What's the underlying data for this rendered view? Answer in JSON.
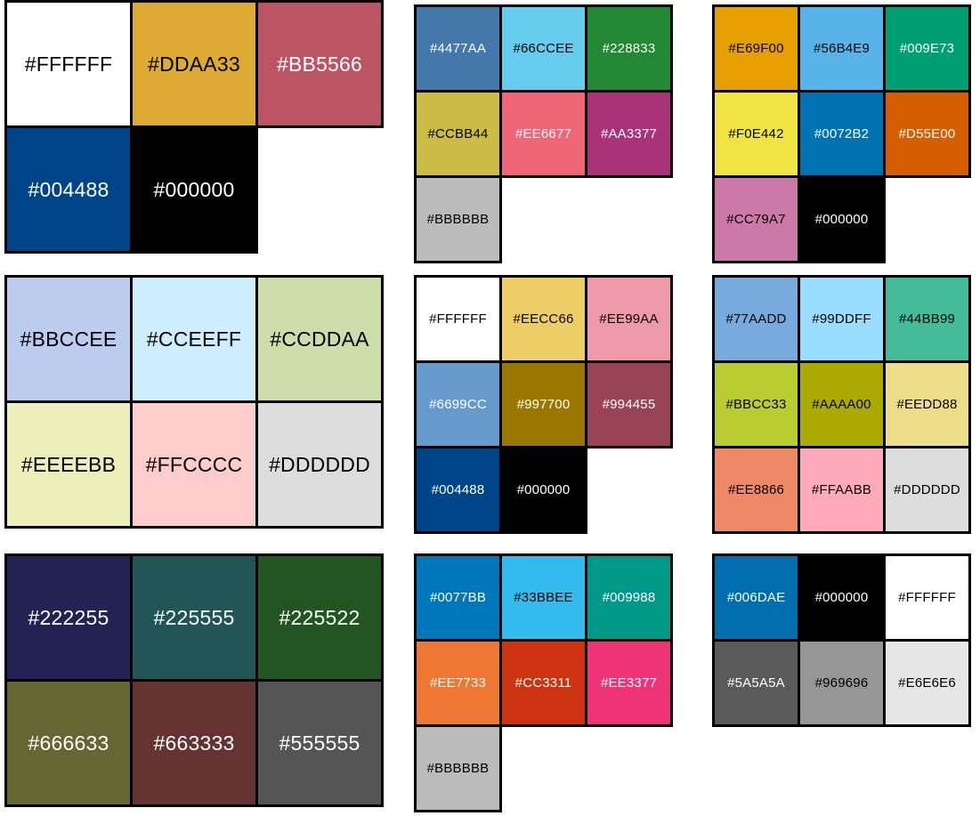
{
  "figure": {
    "background": "#FFFFFF",
    "border_color": "#000000"
  },
  "palettes": [
    {
      "rows": [
        [
          {
            "hex": "#FFFFFF",
            "text": "#000000"
          },
          {
            "hex": "#DDAA33",
            "text": "#000000"
          },
          {
            "hex": "#BB5566",
            "text": "#FFFFFF"
          }
        ],
        [
          {
            "hex": "#004488",
            "text": "#FFFFFF"
          },
          {
            "hex": "#000000",
            "text": "#FFFFFF"
          }
        ]
      ]
    },
    {
      "rows": [
        [
          {
            "hex": "#4477AA",
            "text": "#FFFFFF"
          },
          {
            "hex": "#66CCEE",
            "text": "#000000"
          },
          {
            "hex": "#228833",
            "text": "#FFFFFF"
          }
        ],
        [
          {
            "hex": "#CCBB44",
            "text": "#000000"
          },
          {
            "hex": "#EE6677",
            "text": "#FFFFFF"
          },
          {
            "hex": "#AA3377",
            "text": "#FFFFFF"
          }
        ],
        [
          {
            "hex": "#BBBBBB",
            "text": "#000000"
          }
        ]
      ]
    },
    {
      "rows": [
        [
          {
            "hex": "#E69F00",
            "text": "#000000"
          },
          {
            "hex": "#56B4E9",
            "text": "#000000"
          },
          {
            "hex": "#009E73",
            "text": "#FFFFFF"
          }
        ],
        [
          {
            "hex": "#F0E442",
            "text": "#000000"
          },
          {
            "hex": "#0072B2",
            "text": "#FFFFFF"
          },
          {
            "hex": "#D55E00",
            "text": "#FFFFFF"
          }
        ],
        [
          {
            "hex": "#CC79A7",
            "text": "#000000"
          },
          {
            "hex": "#000000",
            "text": "#FFFFFF"
          }
        ]
      ]
    },
    {
      "rows": [
        [
          {
            "hex": "#BBCCEE",
            "text": "#000000"
          },
          {
            "hex": "#CCEEFF",
            "text": "#000000"
          },
          {
            "hex": "#CCDDAA",
            "text": "#000000"
          }
        ],
        [
          {
            "hex": "#EEEEBB",
            "text": "#000000"
          },
          {
            "hex": "#FFCCCC",
            "text": "#000000"
          },
          {
            "hex": "#DDDDDD",
            "text": "#000000"
          }
        ]
      ]
    },
    {
      "rows": [
        [
          {
            "hex": "#FFFFFF",
            "text": "#000000"
          },
          {
            "hex": "#EECC66",
            "text": "#000000"
          },
          {
            "hex": "#EE99AA",
            "text": "#000000"
          }
        ],
        [
          {
            "hex": "#6699CC",
            "text": "#FFFFFF"
          },
          {
            "hex": "#997700",
            "text": "#FFFFFF"
          },
          {
            "hex": "#994455",
            "text": "#FFFFFF"
          }
        ],
        [
          {
            "hex": "#004488",
            "text": "#FFFFFF"
          },
          {
            "hex": "#000000",
            "text": "#FFFFFF"
          }
        ]
      ]
    },
    {
      "rows": [
        [
          {
            "hex": "#77AADD",
            "text": "#000000"
          },
          {
            "hex": "#99DDFF",
            "text": "#000000"
          },
          {
            "hex": "#44BB99",
            "text": "#000000"
          }
        ],
        [
          {
            "hex": "#BBCC33",
            "text": "#000000"
          },
          {
            "hex": "#AAAA00",
            "text": "#000000"
          },
          {
            "hex": "#EEDD88",
            "text": "#000000"
          }
        ],
        [
          {
            "hex": "#EE8866",
            "text": "#000000"
          },
          {
            "hex": "#FFAABB",
            "text": "#000000"
          },
          {
            "hex": "#DDDDDD",
            "text": "#000000"
          }
        ]
      ]
    },
    {
      "rows": [
        [
          {
            "hex": "#222255",
            "text": "#FFFFFF"
          },
          {
            "hex": "#225555",
            "text": "#FFFFFF"
          },
          {
            "hex": "#225522",
            "text": "#FFFFFF"
          }
        ],
        [
          {
            "hex": "#666633",
            "text": "#FFFFFF"
          },
          {
            "hex": "#663333",
            "text": "#FFFFFF"
          },
          {
            "hex": "#555555",
            "text": "#FFFFFF"
          }
        ]
      ]
    },
    {
      "rows": [
        [
          {
            "hex": "#0077BB",
            "text": "#FFFFFF"
          },
          {
            "hex": "#33BBEE",
            "text": "#000000"
          },
          {
            "hex": "#009988",
            "text": "#FFFFFF"
          }
        ],
        [
          {
            "hex": "#EE7733",
            "text": "#FFFFFF"
          },
          {
            "hex": "#CC3311",
            "text": "#FFFFFF"
          },
          {
            "hex": "#EE3377",
            "text": "#FFFFFF"
          }
        ],
        [
          {
            "hex": "#BBBBBB",
            "text": "#000000"
          }
        ]
      ]
    },
    {
      "rows": [
        [
          {
            "hex": "#006DAE",
            "text": "#FFFFFF"
          },
          {
            "hex": "#000000",
            "text": "#FFFFFF"
          },
          {
            "hex": "#FFFFFF",
            "text": "#000000"
          }
        ],
        [
          {
            "hex": "#5A5A5A",
            "text": "#FFFFFF"
          },
          {
            "hex": "#969696",
            "text": "#000000"
          },
          {
            "hex": "#E6E6E6",
            "text": "#000000"
          }
        ]
      ]
    }
  ]
}
